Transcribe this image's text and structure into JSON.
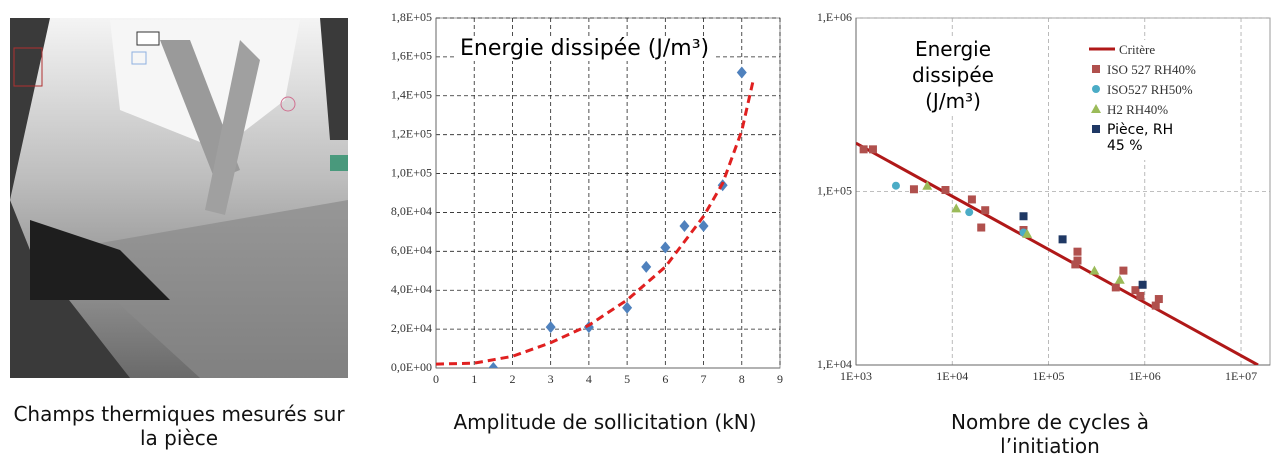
{
  "image_panel": {
    "caption": "Champs thermiques mesurés sur la pièce"
  },
  "chart_data": [
    {
      "type": "scatter",
      "title": "Energie dissipée (J/m³)",
      "x_label": "Amplitude de sollicitation (kN)",
      "xlim": [
        0,
        9
      ],
      "xticks": [
        0,
        1,
        2,
        3,
        4,
        5,
        6,
        7,
        8,
        9
      ],
      "ylim": [
        0,
        180000
      ],
      "yticks": [
        {
          "value": 0,
          "label": "0,0E+00"
        },
        {
          "value": 20000,
          "label": "2,0E+04"
        },
        {
          "value": 40000,
          "label": "4,0E+04"
        },
        {
          "value": 60000,
          "label": "6,0E+04"
        },
        {
          "value": 80000,
          "label": "8,0E+04"
        },
        {
          "value": 100000,
          "label": "1,0E+05"
        },
        {
          "value": 120000,
          "label": "1,2E+05"
        },
        {
          "value": 140000,
          "label": "1,4E+05"
        },
        {
          "value": 160000,
          "label": "1,6E+05"
        },
        {
          "value": 180000,
          "label": "1,8E+05"
        }
      ],
      "grid": true,
      "series": [
        {
          "kind": "points",
          "marker": "diamond",
          "color": "#4f81bd",
          "x": [
            1.5,
            3,
            4,
            5,
            5.5,
            6,
            6.5,
            7,
            7.5,
            8
          ],
          "values": [
            0,
            21000,
            21000,
            31000,
            52000,
            62000,
            73000,
            73000,
            94000,
            152000
          ]
        },
        {
          "kind": "line",
          "dash": "dashed",
          "color": "#e02020",
          "x": [
            0,
            1,
            2,
            3,
            4,
            5,
            6,
            7,
            7.5,
            8,
            8.3
          ],
          "values": [
            2000,
            2500,
            6000,
            13000,
            22000,
            35000,
            52000,
            78000,
            95000,
            122000,
            148000
          ]
        }
      ]
    },
    {
      "type": "scatter",
      "title": "Energie dissipée (J/m³)",
      "x_label": "Nombre de cycles à l’initiation",
      "xscale": "log",
      "yscale": "log",
      "xlim": [
        1000,
        20000000
      ],
      "xticks": [
        {
          "value": 1000,
          "label": "1E+03"
        },
        {
          "value": 10000,
          "label": "1E+04"
        },
        {
          "value": 100000,
          "label": "1E+05"
        },
        {
          "value": 1000000,
          "label": "1E+06"
        },
        {
          "value": 10000000,
          "label": "1E+07"
        }
      ],
      "ylim": [
        10000,
        1000000
      ],
      "yticks": [
        {
          "value": 10000,
          "label": "1,E+04"
        },
        {
          "value": 100000,
          "label": "1,E+05"
        },
        {
          "value": 1000000,
          "label": "1,E+06"
        }
      ],
      "grid": true,
      "legend": "top-right",
      "series": [
        {
          "name": "Critère",
          "kind": "line",
          "color": "#b01818",
          "x": [
            1000,
            15000000
          ],
          "values": [
            190000,
            10000
          ]
        },
        {
          "name": "ISO 527 RH40%",
          "kind": "points",
          "marker": "square",
          "color": "#b0504d",
          "x": [
            1200,
            1500,
            4000,
            8500,
            16000,
            20000,
            22000,
            55000,
            190000,
            200000,
            200000,
            500000,
            600000,
            800000,
            900000,
            1300000,
            1400000
          ],
          "values": [
            175000,
            175000,
            103000,
            102000,
            90000,
            62000,
            78000,
            60000,
            38000,
            45000,
            40000,
            28000,
            35000,
            27000,
            25000,
            22000,
            24000
          ]
        },
        {
          "name": "ISO527 RH50%",
          "kind": "points",
          "marker": "circle",
          "color": "#4bacc6",
          "x": [
            2600,
            15000,
            55000
          ],
          "values": [
            108000,
            76000,
            58000
          ]
        },
        {
          "name": "H2 RH40%",
          "kind": "points",
          "marker": "triangle",
          "color": "#9bbb59",
          "x": [
            5500,
            11000,
            60000,
            300000,
            550000
          ],
          "values": [
            108000,
            80000,
            57000,
            35000,
            31000
          ]
        },
        {
          "name": "Pièce, RH 45 %",
          "kind": "points",
          "marker": "square",
          "color": "#1f3864",
          "x": [
            55000,
            140000,
            950000
          ],
          "values": [
            72000,
            53000,
            29000
          ]
        }
      ]
    }
  ]
}
